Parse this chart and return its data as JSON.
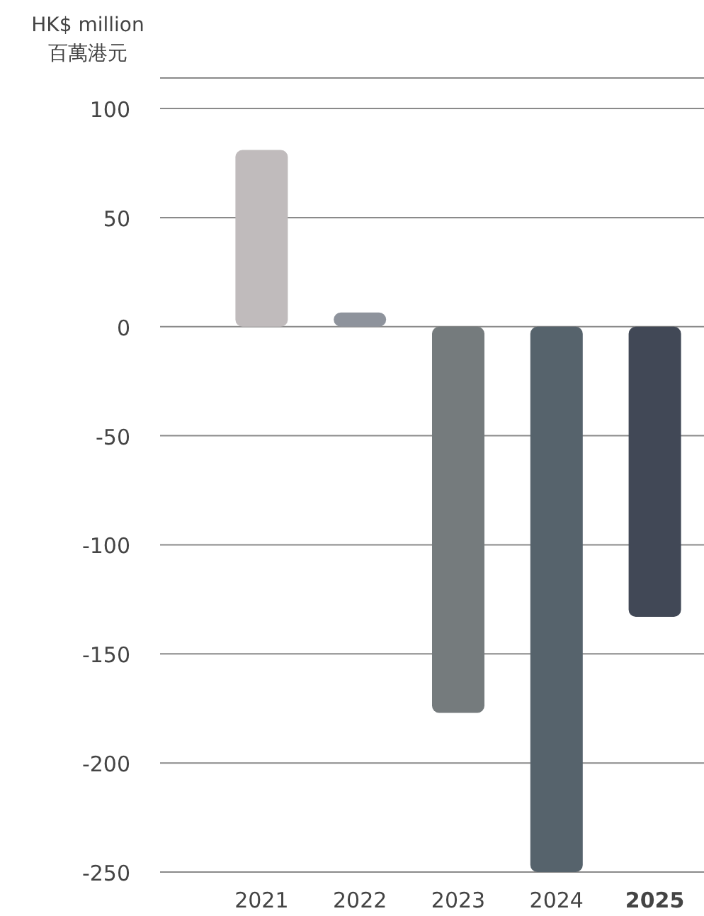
{
  "chart_data": {
    "type": "bar",
    "ylabel": "HK$ million\n百萬港元",
    "categories": [
      "2021",
      "2022",
      "2023",
      "2024",
      "**2025**"
    ],
    "values": [
      81,
      6.5,
      -177,
      -250,
      -133
    ],
    "colors": [
      "#c0bbbc",
      "#8e939c",
      "#757b7d",
      "#56636c",
      "#414856"
    ],
    "ylim": [
      -250,
      114
    ],
    "yticks": [
      -250,
      -200,
      -150,
      -100,
      -50,
      0,
      50,
      100,
      {
        "value": 114,
        "label": null
      }
    ],
    "grid": "y"
  }
}
